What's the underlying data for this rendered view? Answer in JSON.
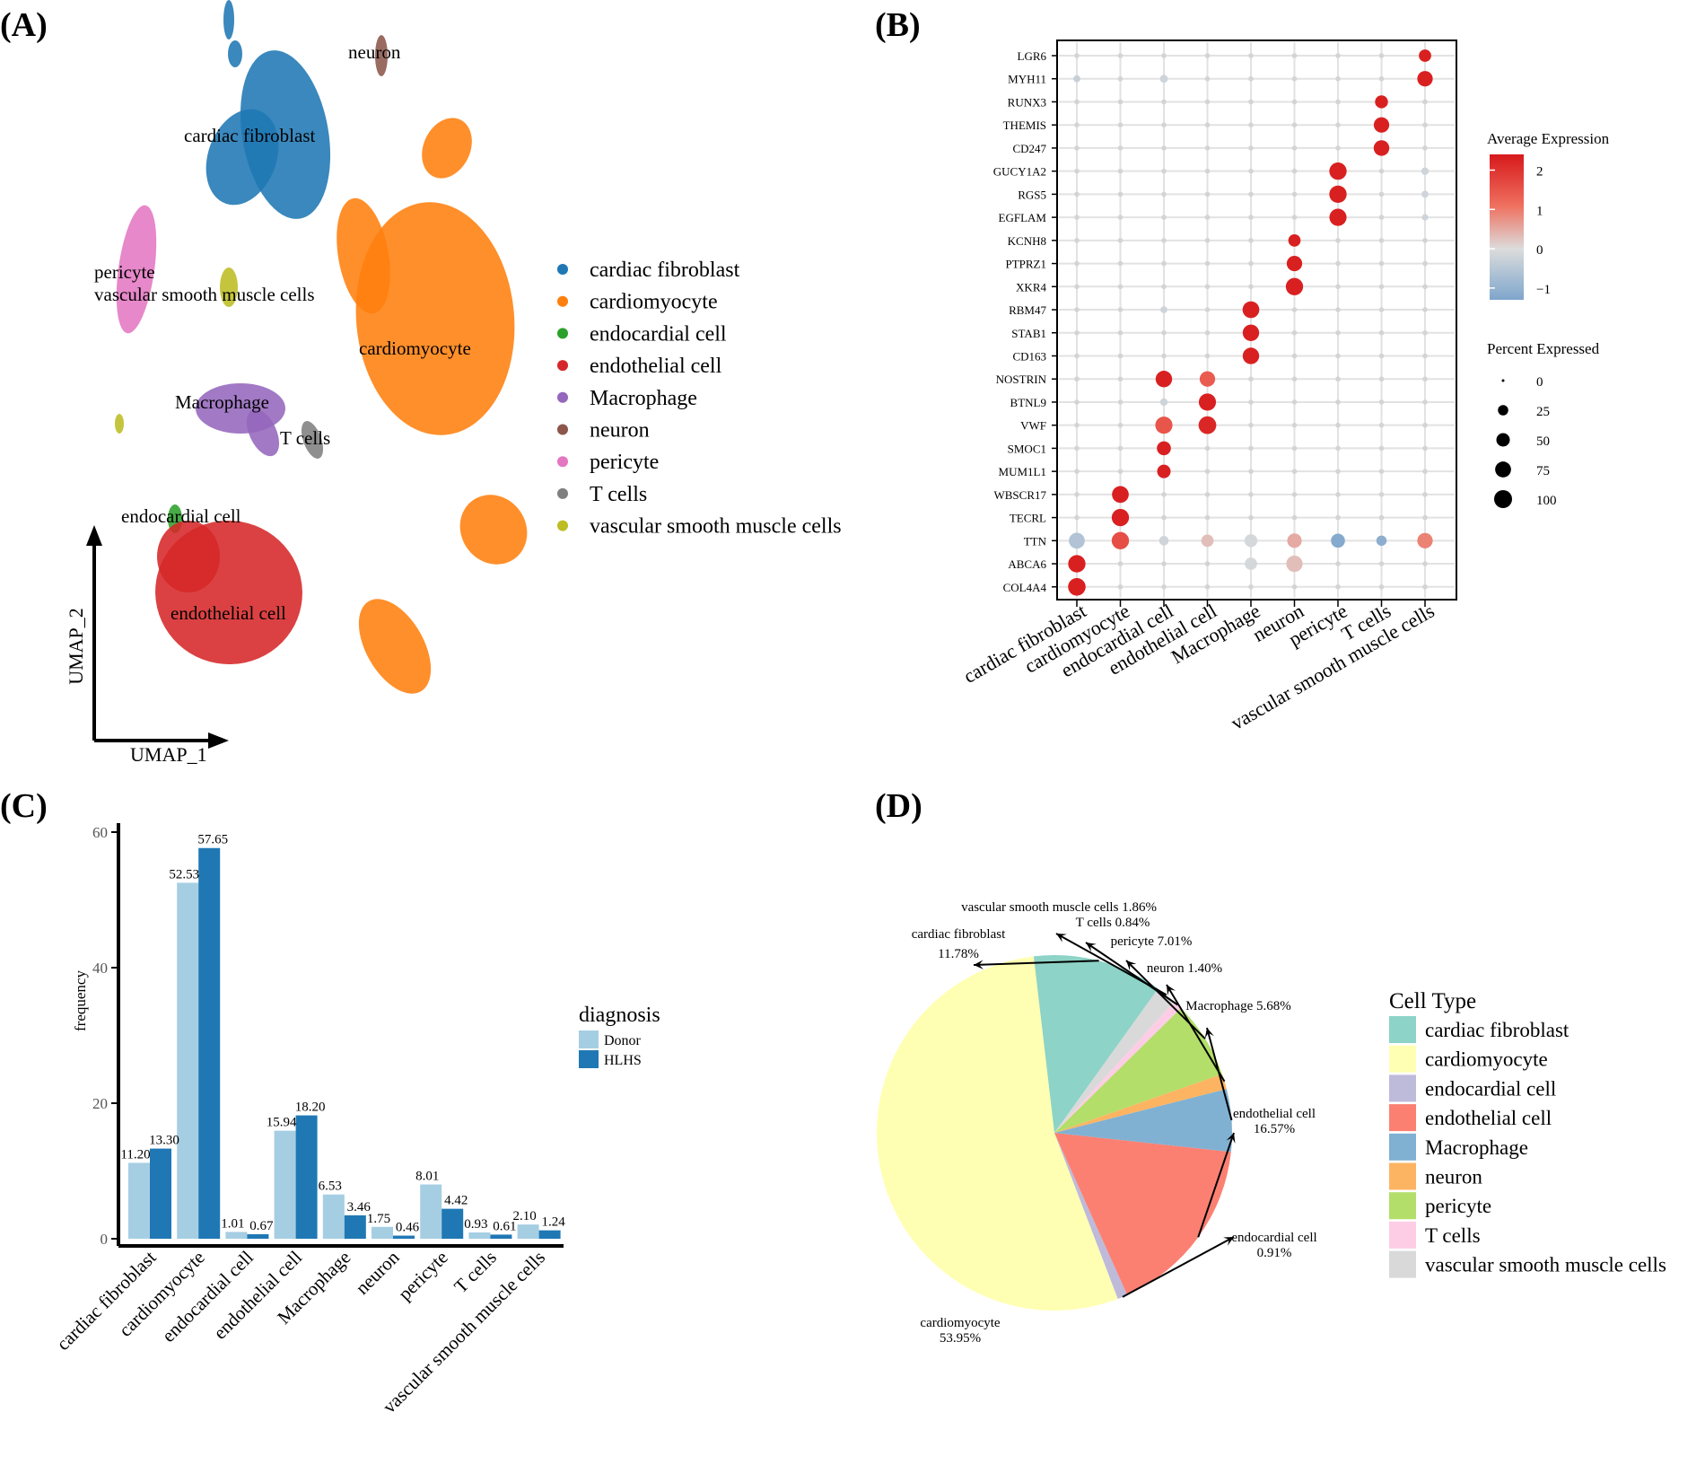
{
  "panels": {
    "a": "(A)",
    "b": "(B)",
    "c": "(C)",
    "d": "(D)"
  },
  "palette": {
    "cardiac fibroblast": "#1f77b4",
    "cardiomyocyte": "#ff7f0e",
    "endocardial cell": "#2ca02c",
    "endothelial cell": "#d62728",
    "Macrophage": "#9467bd",
    "neuron": "#8c564b",
    "pericyte": "#e377c2",
    "T cells": "#7f7f7f",
    "vascular smooth muscle cells": "#bcbd22"
  },
  "chart_data": [
    {
      "type": "scatter",
      "title": "",
      "xlabel": "UMAP_1",
      "ylabel": "UMAP_2",
      "legend": [
        "cardiac fibroblast",
        "cardiomyocyte",
        "endocardial cell",
        "endothelial cell",
        "Macrophage",
        "neuron",
        "pericyte",
        "T cells",
        "vascular smooth muscle cells"
      ],
      "cluster_labels": [
        {
          "text": "neuron",
          "cluster": "neuron"
        },
        {
          "text": "cardiac fibroblast",
          "cluster": "cardiac fibroblast"
        },
        {
          "text": "pericyte",
          "cluster": "pericyte"
        },
        {
          "text": "vascular smooth muscle cells",
          "cluster": "vascular smooth muscle cells"
        },
        {
          "text": "cardiomyocyte",
          "cluster": "cardiomyocyte"
        },
        {
          "text": "Macrophage",
          "cluster": "Macrophage"
        },
        {
          "text": "T cells",
          "cluster": "T cells"
        },
        {
          "text": "endocardial cell",
          "cluster": "endocardial cell"
        },
        {
          "text": "endothelial cell",
          "cluster": "endothelial cell"
        }
      ]
    },
    {
      "type": "dotplot",
      "genes": [
        "LGR6",
        "MYH11",
        "RUNX3",
        "THEMIS",
        "CD247",
        "GUCY1A2",
        "RGS5",
        "EGFLAM",
        "KCNH8",
        "PTPRZ1",
        "XKR4",
        "RBM47",
        "STAB1",
        "CD163",
        "NOSTRIN",
        "BTNL9",
        "VWF",
        "SMOC1",
        "MUM1L1",
        "WBSCR17",
        "TECRL",
        "TTN",
        "ABCA6",
        "COL4A4"
      ],
      "groups": [
        "cardiac fibroblast",
        "cardiomyocyte",
        "endocardial cell",
        "endothelial cell",
        "Macrophage",
        "neuron",
        "pericyte",
        "T cells",
        "vascular smooth muscle cells"
      ],
      "color_legend": {
        "title": "Average Expression",
        "ticks": [
          "2",
          "1",
          "0",
          "−1"
        ],
        "range": [
          -1.3,
          2.4
        ]
      },
      "size_legend": {
        "title": "Percent Expressed",
        "values": [
          0,
          25,
          50,
          75,
          100
        ]
      },
      "points": [
        {
          "gene": "LGR6",
          "group": "vascular smooth muscle cells",
          "pct": 40,
          "avg": 2.3
        },
        {
          "gene": "MYH11",
          "group": "vascular smooth muscle cells",
          "pct": 70,
          "avg": 2.3
        },
        {
          "gene": "MYH11",
          "group": "cardiac fibroblast",
          "pct": 8,
          "avg": -0.3
        },
        {
          "gene": "MYH11",
          "group": "endocardial cell",
          "pct": 12,
          "avg": -0.2
        },
        {
          "gene": "RUNX3",
          "group": "T cells",
          "pct": 45,
          "avg": 2.3
        },
        {
          "gene": "THEMIS",
          "group": "T cells",
          "pct": 70,
          "avg": 2.3
        },
        {
          "gene": "CD247",
          "group": "T cells",
          "pct": 72,
          "avg": 2.3
        },
        {
          "gene": "GUCY1A2",
          "group": "pericyte",
          "pct": 92,
          "avg": 2.3
        },
        {
          "gene": "GUCY1A2",
          "group": "vascular smooth muscle cells",
          "pct": 10,
          "avg": -0.2
        },
        {
          "gene": "RGS5",
          "group": "pericyte",
          "pct": 92,
          "avg": 2.3
        },
        {
          "gene": "RGS5",
          "group": "vascular smooth muscle cells",
          "pct": 8,
          "avg": -0.2
        },
        {
          "gene": "EGFLAM",
          "group": "pericyte",
          "pct": 90,
          "avg": 2.3
        },
        {
          "gene": "EGFLAM",
          "group": "vascular smooth muscle cells",
          "pct": 6,
          "avg": -0.2
        },
        {
          "gene": "KCNH8",
          "group": "neuron",
          "pct": 40,
          "avg": 2.3
        },
        {
          "gene": "PTPRZ1",
          "group": "neuron",
          "pct": 70,
          "avg": 2.3
        },
        {
          "gene": "XKR4",
          "group": "neuron",
          "pct": 92,
          "avg": 2.3
        },
        {
          "gene": "RBM47",
          "group": "Macrophage",
          "pct": 85,
          "avg": 2.3
        },
        {
          "gene": "RBM47",
          "group": "endocardial cell",
          "pct": 8,
          "avg": -0.2
        },
        {
          "gene": "STAB1",
          "group": "Macrophage",
          "pct": 82,
          "avg": 2.3
        },
        {
          "gene": "CD163",
          "group": "Macrophage",
          "pct": 82,
          "avg": 2.3
        },
        {
          "gene": "NOSTRIN",
          "group": "endocardial cell",
          "pct": 82,
          "avg": 2.3
        },
        {
          "gene": "NOSTRIN",
          "group": "endothelial cell",
          "pct": 70,
          "avg": 1.4
        },
        {
          "gene": "BTNL9",
          "group": "endothelial cell",
          "pct": 90,
          "avg": 2.3
        },
        {
          "gene": "BTNL9",
          "group": "endocardial cell",
          "pct": 10,
          "avg": -0.2
        },
        {
          "gene": "VWF",
          "group": "endocardial cell",
          "pct": 90,
          "avg": 1.5
        },
        {
          "gene": "VWF",
          "group": "endothelial cell",
          "pct": 97,
          "avg": 2.2
        },
        {
          "gene": "SMOC1",
          "group": "endocardial cell",
          "pct": 55,
          "avg": 2.3
        },
        {
          "gene": "MUM1L1",
          "group": "endocardial cell",
          "pct": 50,
          "avg": 2.3
        },
        {
          "gene": "WBSCR17",
          "group": "cardiomyocyte",
          "pct": 85,
          "avg": 2.3
        },
        {
          "gene": "TECRL",
          "group": "cardiomyocyte",
          "pct": 92,
          "avg": 2.3
        },
        {
          "gene": "TTN",
          "group": "cardiac fibroblast",
          "pct": 75,
          "avg": -0.6
        },
        {
          "gene": "TTN",
          "group": "cardiomyocyte",
          "pct": 92,
          "avg": 1.6
        },
        {
          "gene": "TTN",
          "group": "endocardial cell",
          "pct": 20,
          "avg": -0.2
        },
        {
          "gene": "TTN",
          "group": "endothelial cell",
          "pct": 40,
          "avg": 0.3
        },
        {
          "gene": "TTN",
          "group": "Macrophage",
          "pct": 45,
          "avg": -0.1
        },
        {
          "gene": "TTN",
          "group": "neuron",
          "pct": 60,
          "avg": 0.5
        },
        {
          "gene": "TTN",
          "group": "pericyte",
          "pct": 55,
          "avg": -1.2
        },
        {
          "gene": "TTN",
          "group": "T cells",
          "pct": 25,
          "avg": -1.1
        },
        {
          "gene": "TTN",
          "group": "vascular smooth muscle cells",
          "pct": 70,
          "avg": 0.9
        },
        {
          "gene": "ABCA6",
          "group": "cardiac fibroblast",
          "pct": 92,
          "avg": 2.3
        },
        {
          "gene": "ABCA6",
          "group": "Macrophage",
          "pct": 40,
          "avg": -0.1
        },
        {
          "gene": "ABCA6",
          "group": "neuron",
          "pct": 80,
          "avg": 0.3
        },
        {
          "gene": "COL4A4",
          "group": "cardiac fibroblast",
          "pct": 95,
          "avg": 2.3
        }
      ]
    },
    {
      "type": "bar",
      "categories": [
        "cardiac fibroblast",
        "cardiomyocyte",
        "endocardial cell",
        "endothelial cell",
        "Macrophage",
        "neuron",
        "pericyte",
        "T cells",
        "vascular smooth muscle cells"
      ],
      "series": [
        {
          "name": "Donor",
          "color": "#a6cee3",
          "values": [
            11.2,
            52.53,
            1.01,
            15.94,
            6.53,
            1.75,
            8.01,
            0.93,
            2.1
          ],
          "labels": [
            "11.20",
            "52.53",
            "1.01",
            "15.94",
            "6.53",
            "1.75",
            "8.01",
            "0.93",
            "2.10"
          ]
        },
        {
          "name": "HLHS",
          "color": "#1f78b4",
          "values": [
            13.3,
            57.65,
            0.67,
            18.2,
            3.46,
            0.46,
            4.42,
            0.61,
            1.24
          ],
          "labels": [
            "13.30",
            "57.65",
            "0.67",
            "18.20",
            "3.46",
            "0.46",
            "4.42",
            "0.61",
            "1.24"
          ]
        }
      ],
      "title": "",
      "xlabel": "",
      "ylabel": "frequency",
      "ylim": [
        0,
        60
      ],
      "yticks": [
        0,
        20,
        40,
        60
      ],
      "legend_title": "diagnosis"
    },
    {
      "type": "pie",
      "legend_title": "Cell Type",
      "slices": [
        {
          "label": "cardiac fibroblast",
          "value": 11.78,
          "pct": "11.78%",
          "color": "#8dd3c7"
        },
        {
          "label": "cardiomyocyte",
          "value": 53.95,
          "pct": "53.95%",
          "color": "#ffffb3"
        },
        {
          "label": "endocardial cell",
          "value": 0.91,
          "pct": "0.91%",
          "color": "#bebada"
        },
        {
          "label": "endothelial cell",
          "value": 16.57,
          "pct": "16.57%",
          "color": "#fb8072"
        },
        {
          "label": "Macrophage",
          "value": 5.68,
          "pct": "5.68%",
          "color": "#80b1d3"
        },
        {
          "label": "neuron",
          "value": 1.4,
          "pct": "1.40%",
          "color": "#fdb462"
        },
        {
          "label": "pericyte",
          "value": 7.01,
          "pct": "7.01%",
          "color": "#b3de69"
        },
        {
          "label": "T cells",
          "value": 0.84,
          "pct": "0.84%",
          "color": "#fccde5"
        },
        {
          "label": "vascular smooth muscle cells",
          "value": 1.86,
          "pct": "1.86%",
          "color": "#d9d9d9"
        }
      ]
    }
  ]
}
